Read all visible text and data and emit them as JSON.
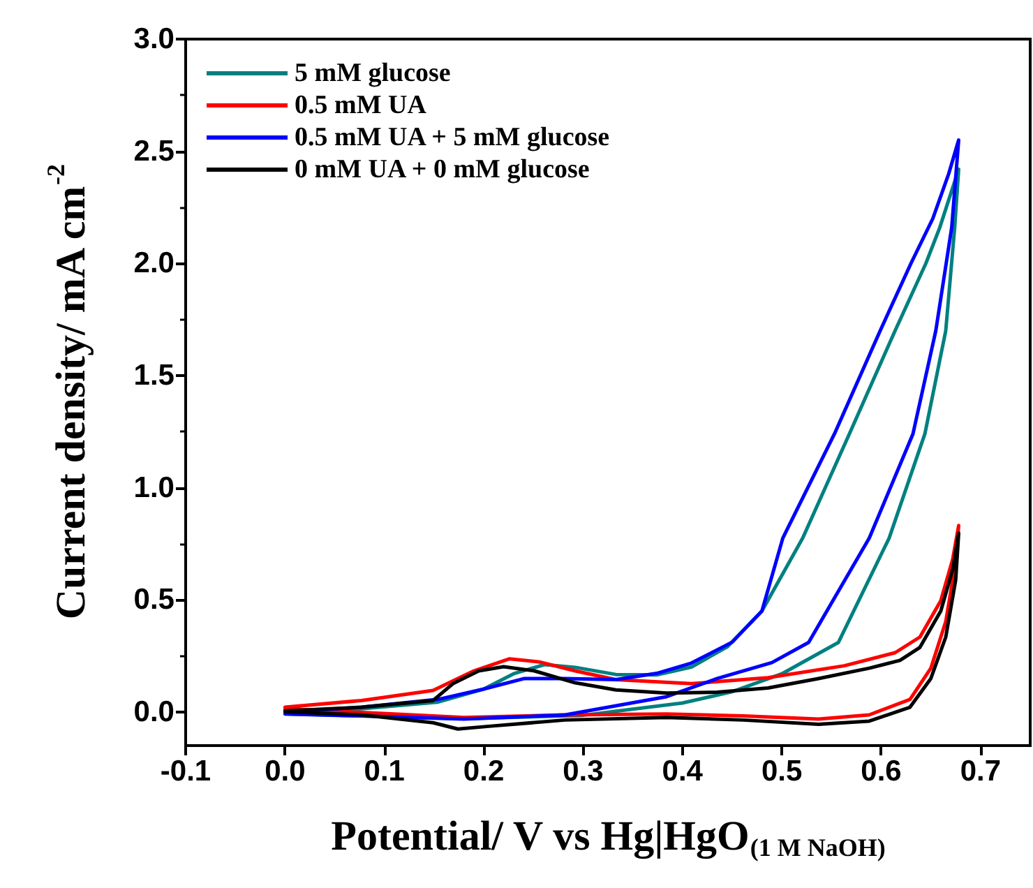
{
  "chart_data": {
    "type": "line",
    "xlabel": "Potential/ V vs Hg|HgO$_{(1 M NaOH)}$",
    "ylabel": "Current density/ mA cm$^{-2}$",
    "xlim": [
      -0.1,
      0.75
    ],
    "ylim": [
      -0.15,
      3.0
    ],
    "xticks": [
      -0.1,
      {
        "value": 0,
        "label": "0.0"
      },
      0.1,
      0.2,
      0.3,
      0.4,
      0.5,
      0.6,
      0.7
    ],
    "yticks": [
      {
        "value": 0,
        "label": "0.0"
      },
      0.5,
      {
        "value": 1,
        "label": "1.0"
      },
      1.5,
      {
        "value": 2,
        "label": "2.0"
      },
      2.5,
      {
        "value": 3,
        "label": "3.0"
      }
    ],
    "grid": false,
    "legend": "top left",
    "marker": "none",
    "line_style": "solid",
    "series": [
      {
        "name": "5 mM glucose",
        "color": "#008080",
        "x": [
          0,
          0.077,
          0.154,
          0.2,
          0.231,
          0.261,
          0.292,
          0.333,
          0.374,
          0.409,
          0.445,
          0.48,
          0.521,
          0.568,
          0.614,
          0.645,
          0.659,
          0.678,
          0.674,
          0.665,
          0.644,
          0.608,
          0.557,
          0.5,
          0.45,
          0.4,
          0.3,
          0.18,
          0.077,
          0
        ],
        "values": [
          -0.002,
          0.014,
          0.044,
          0.102,
          0.172,
          0.211,
          0.199,
          0.167,
          0.165,
          0.2,
          0.29,
          0.45,
          0.775,
          1.24,
          1.7,
          2.0,
          2.16,
          2.42,
          2.16,
          1.7,
          1.24,
          0.775,
          0.31,
          0.17,
          0.09,
          0.04,
          -0.015,
          -0.03,
          -0.018,
          -0.008
        ]
      },
      {
        "name": "0.5 mM UA",
        "color": "#ff0000",
        "x": [
          0,
          0.077,
          0.149,
          0.19,
          0.226,
          0.256,
          0.292,
          0.333,
          0.409,
          0.486,
          0.563,
          0.614,
          0.639,
          0.66,
          0.672,
          0.678,
          0.675,
          0.665,
          0.65,
          0.629,
          0.588,
          0.537,
          0.461,
          0.384,
          0.282,
          0.18,
          0.128,
          0.052,
          0
        ],
        "values": [
          0.021,
          0.051,
          0.096,
          0.183,
          0.237,
          0.223,
          0.183,
          0.144,
          0.126,
          0.153,
          0.206,
          0.264,
          0.334,
          0.496,
          0.681,
          0.831,
          0.666,
          0.403,
          0.195,
          0.056,
          -0.013,
          -0.032,
          -0.018,
          -0.009,
          -0.013,
          -0.025,
          -0.013,
          0.003,
          0.014
        ]
      },
      {
        "name": "0.5 mM UA + 5 mM glucose",
        "color": "#0000ff",
        "x": [
          0,
          0.077,
          0.154,
          0.2,
          0.241,
          0.282,
          0.333,
          0.374,
          0.409,
          0.45,
          0.48,
          0.501,
          0.553,
          0.599,
          0.63,
          0.652,
          0.668,
          0.678,
          0.671,
          0.655,
          0.632,
          0.588,
          0.527,
          0.49,
          0.435,
          0.384,
          0.282,
          0.18,
          0.077,
          0
        ],
        "values": [
          -0.002,
          0.021,
          0.056,
          0.102,
          0.149,
          0.149,
          0.144,
          0.172,
          0.218,
          0.311,
          0.45,
          0.775,
          1.24,
          1.7,
          2.0,
          2.2,
          2.4,
          2.55,
          2.16,
          1.7,
          1.24,
          0.775,
          0.31,
          0.22,
          0.149,
          0.068,
          -0.013,
          -0.032,
          -0.018,
          -0.009
        ]
      },
      {
        "name": "0 mM UA + 0 mM glucose",
        "color": "#000000",
        "x": [
          0,
          0.077,
          0.149,
          0.169,
          0.195,
          0.22,
          0.251,
          0.292,
          0.333,
          0.384,
          0.435,
          0.486,
          0.537,
          0.588,
          0.619,
          0.639,
          0.66,
          0.672,
          0.678,
          0.675,
          0.665,
          0.65,
          0.629,
          0.588,
          0.537,
          0.461,
          0.384,
          0.282,
          0.205,
          0.174,
          0.149,
          0.077,
          0
        ],
        "values": [
          0.005,
          0.021,
          0.051,
          0.126,
          0.183,
          0.202,
          0.183,
          0.13,
          0.098,
          0.084,
          0.088,
          0.107,
          0.149,
          0.195,
          0.23,
          0.288,
          0.45,
          0.635,
          0.797,
          0.588,
          0.334,
          0.149,
          0.021,
          -0.041,
          -0.055,
          -0.036,
          -0.025,
          -0.036,
          -0.064,
          -0.076,
          -0.048,
          -0.013,
          0.001
        ]
      }
    ]
  }
}
